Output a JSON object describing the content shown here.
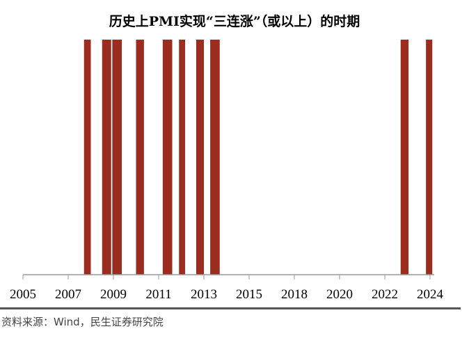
{
  "chart_data": {
    "type": "bar",
    "title": "历史上PMI实现“三连涨”（或以上）的时期",
    "xlabel": "",
    "ylabel": "",
    "x_ticks": [
      "2005",
      "2007",
      "2009",
      "2011",
      "2013",
      "2015",
      "2018",
      "2020",
      "2022",
      "2024"
    ],
    "x_tick_values": [
      2005,
      2007,
      2009,
      2011,
      2013,
      2015,
      2018,
      2020,
      2022,
      2024
    ],
    "periods": [
      {
        "start": 2007.7,
        "end": 2008.0
      },
      {
        "start": 2008.5,
        "end": 2008.9
      },
      {
        "start": 2008.95,
        "end": 2009.37
      },
      {
        "start": 2010.0,
        "end": 2010.35
      },
      {
        "start": 2011.18,
        "end": 2011.6
      },
      {
        "start": 2011.9,
        "end": 2012.17
      },
      {
        "start": 2012.66,
        "end": 2013.0
      },
      {
        "start": 2013.28,
        "end": 2013.7
      },
      {
        "start": 2022.7,
        "end": 2023.05
      },
      {
        "start": 2023.82,
        "end": 2024.1
      }
    ],
    "bar_color": "#9b2d20",
    "grid": false
  },
  "source": "资料来源：Wind，民生证券研究院"
}
